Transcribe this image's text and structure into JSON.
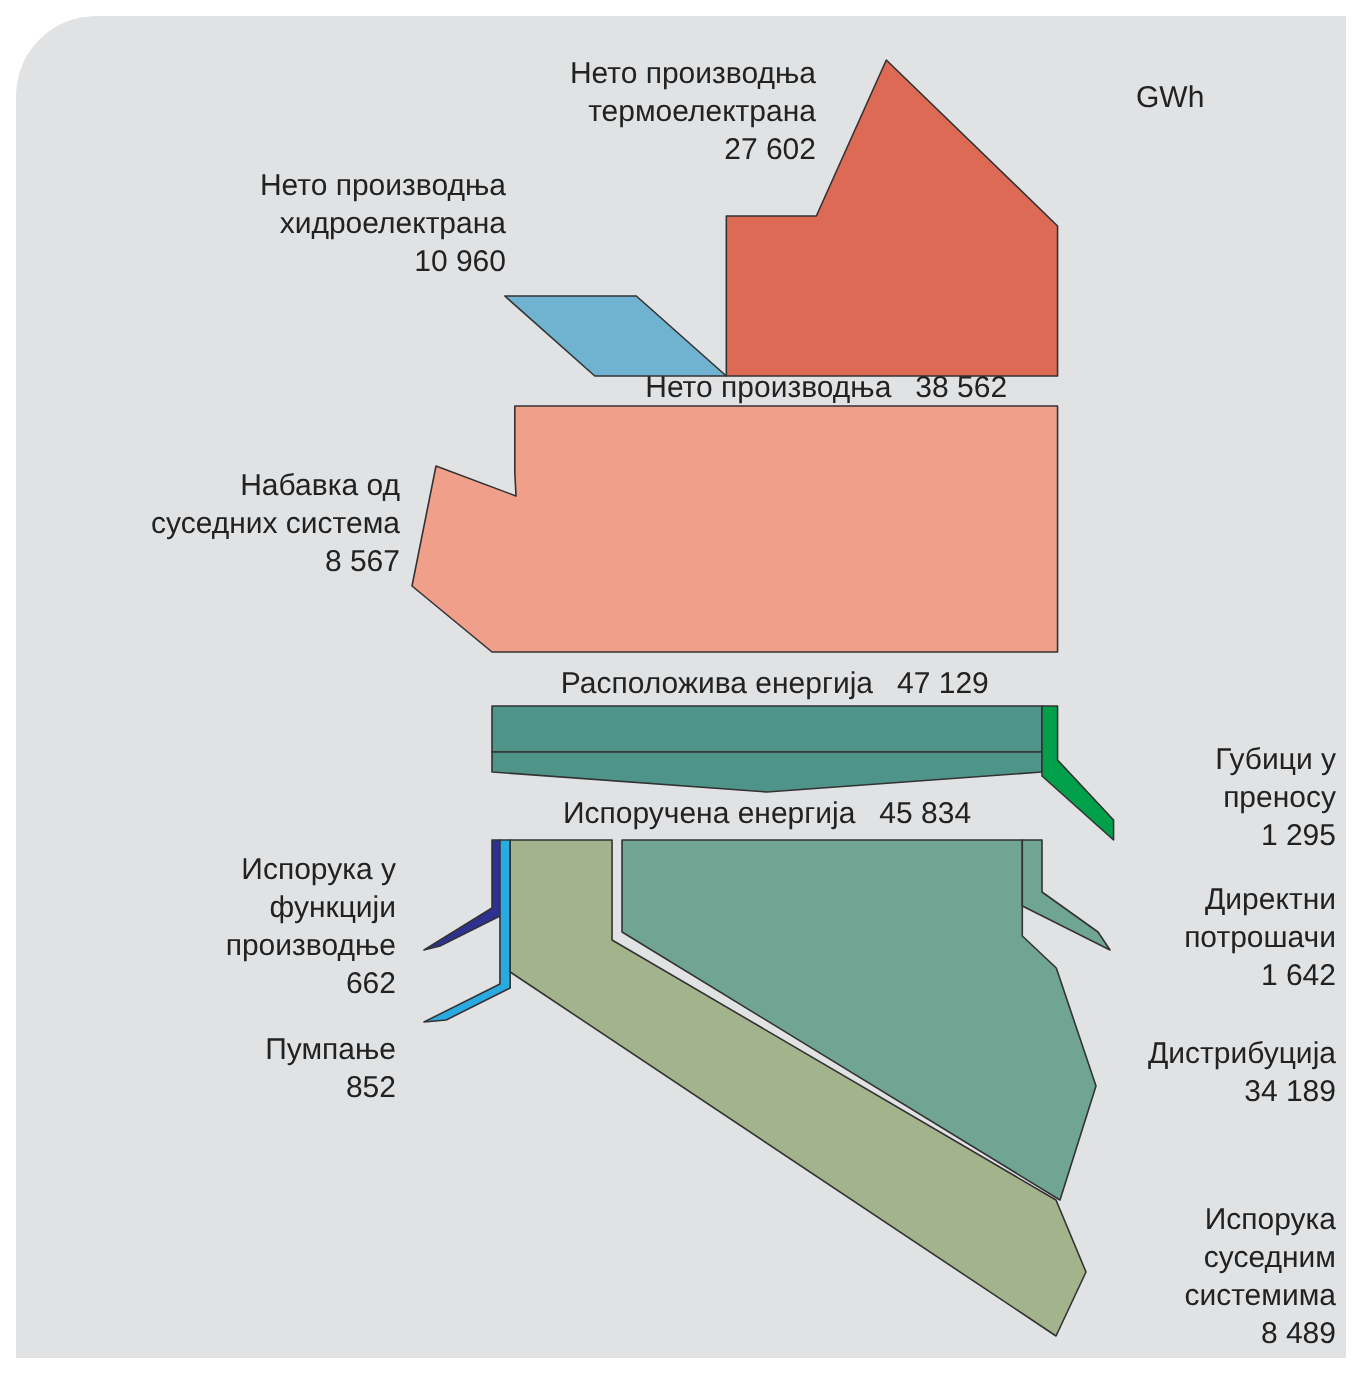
{
  "chart_data": {
    "type": "other",
    "annotations": [
      "GWh"
    ],
    "categories": [
      "Нето производња хидроелектрана",
      "Нето производња термоелектрана",
      "Нето производња",
      "Набавка од суседних система",
      "Расположива енергија",
      "Губици у преносу",
      "Испоручена енергија",
      "Испорука у функцији производње",
      "Пумпање",
      "Директни потрошачи",
      "Дистрибуција",
      "Испорука суседним системима"
    ],
    "values": [
      10960,
      27602,
      38562,
      8567,
      47129,
      1295,
      45834,
      662,
      852,
      1642,
      34189,
      8489
    ],
    "value_labels": [
      "10 960",
      "27 602",
      "38 562",
      "8 567",
      "47 129",
      "1 295",
      "45 834",
      "662",
      "852",
      "1 642",
      "34 189",
      "8 489"
    ],
    "colors": [
      "#6fb3d0",
      "#dd6a55",
      "#f0a08a",
      "#f0a08a",
      "#4f9488",
      "#00a04a",
      "#4f9488",
      "#2e3192",
      "#29abe2",
      "#6fa592",
      "#6fa592",
      "#a3b38c"
    ]
  }
}
